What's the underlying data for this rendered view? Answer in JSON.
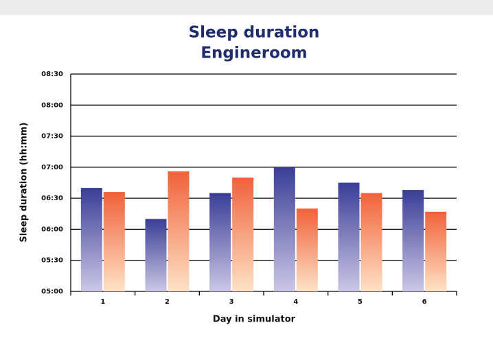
{
  "chart_data": {
    "type": "bar",
    "title": [
      "Sleep duration",
      "Engineroom"
    ],
    "x_label": "Day in simulator",
    "y_label": "Sleep duration (hh:mm)",
    "categories": [
      "1",
      "2",
      "3",
      "4",
      "5",
      "6"
    ],
    "series": [
      {
        "color": "#3a3d96",
        "color_end": "#cbc7e6",
        "values": [
          400,
          370,
          395,
          420,
          405,
          398
        ]
      },
      {
        "color": "#f0623a",
        "color_end": "#fee2c6",
        "values": [
          396,
          416,
          410,
          380,
          395,
          377
        ]
      }
    ],
    "ylim": [
      300,
      510
    ],
    "yticks": [
      {
        "value": 300,
        "label": "05:00"
      },
      {
        "value": 330,
        "label": "05:30"
      },
      {
        "value": 360,
        "label": "06:00"
      },
      {
        "value": 390,
        "label": "06:30"
      },
      {
        "value": 420,
        "label": "07:00"
      },
      {
        "value": 450,
        "label": "07:30"
      },
      {
        "value": 480,
        "label": "08:00"
      },
      {
        "value": 510,
        "label": "08:30"
      }
    ],
    "grid": true
  }
}
